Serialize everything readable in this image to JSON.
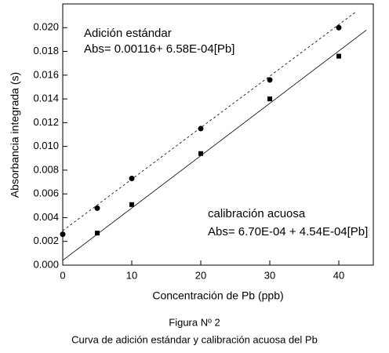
{
  "chart_data": {
    "type": "scatter",
    "xlabel": "Concentración de Pb (ppb)",
    "ylabel": "Absorbancia integrada (s)",
    "xlim": [
      0,
      45
    ],
    "xticks": [
      0,
      10,
      20,
      30,
      40
    ],
    "ylim": [
      0,
      0.022
    ],
    "yticks": [
      {
        "value": 0,
        "label": "0.000"
      },
      {
        "value": 0.002,
        "label": "0.002"
      },
      {
        "value": 0.004,
        "label": "0.004"
      },
      {
        "value": 0.006,
        "label": "0.006"
      },
      {
        "value": 0.008,
        "label": "0.008"
      },
      {
        "value": 0.01,
        "label": "0.010"
      },
      {
        "value": 0.012,
        "label": "0.012"
      },
      {
        "value": 0.014,
        "label": "0.014"
      },
      {
        "value": 0.016,
        "label": "0.016"
      },
      {
        "value": 0.018,
        "label": "0.018"
      },
      {
        "value": 0.02,
        "label": "0.020"
      }
    ],
    "series": [
      {
        "marker": "circle",
        "color": "#000000",
        "x": [
          0,
          5,
          10,
          20,
          30,
          40
        ],
        "values": [
          0.0026,
          0.0048,
          0.0073,
          0.0115,
          0.0156,
          0.02
        ]
      },
      {
        "marker": "square",
        "color": "#000000",
        "x": [
          5,
          10,
          20,
          30,
          40
        ],
        "values": [
          0.0027,
          0.0051,
          0.0094,
          0.014,
          0.0176
        ]
      },
      {
        "marker": "line",
        "dash": true,
        "color": "#000000",
        "x": [
          0,
          42.4
        ],
        "values": [
          0.0029,
          0.0213
        ]
      },
      {
        "marker": "line",
        "dash": false,
        "color": "#000000",
        "x": [
          0,
          44
        ],
        "values": [
          0.0004,
          0.0198
        ]
      }
    ],
    "annotations": [
      "Adición estándar",
      "Abs= 0.00116+ 6.58E-04[Pb]",
      "calibración acuosa",
      "Abs= 6.70E-04 + 4.54E-04[Pb]"
    ],
    "caption": [
      "Figura Nº 2",
      "Curva de adición estándar y calibración acuosa del Pb"
    ]
  }
}
